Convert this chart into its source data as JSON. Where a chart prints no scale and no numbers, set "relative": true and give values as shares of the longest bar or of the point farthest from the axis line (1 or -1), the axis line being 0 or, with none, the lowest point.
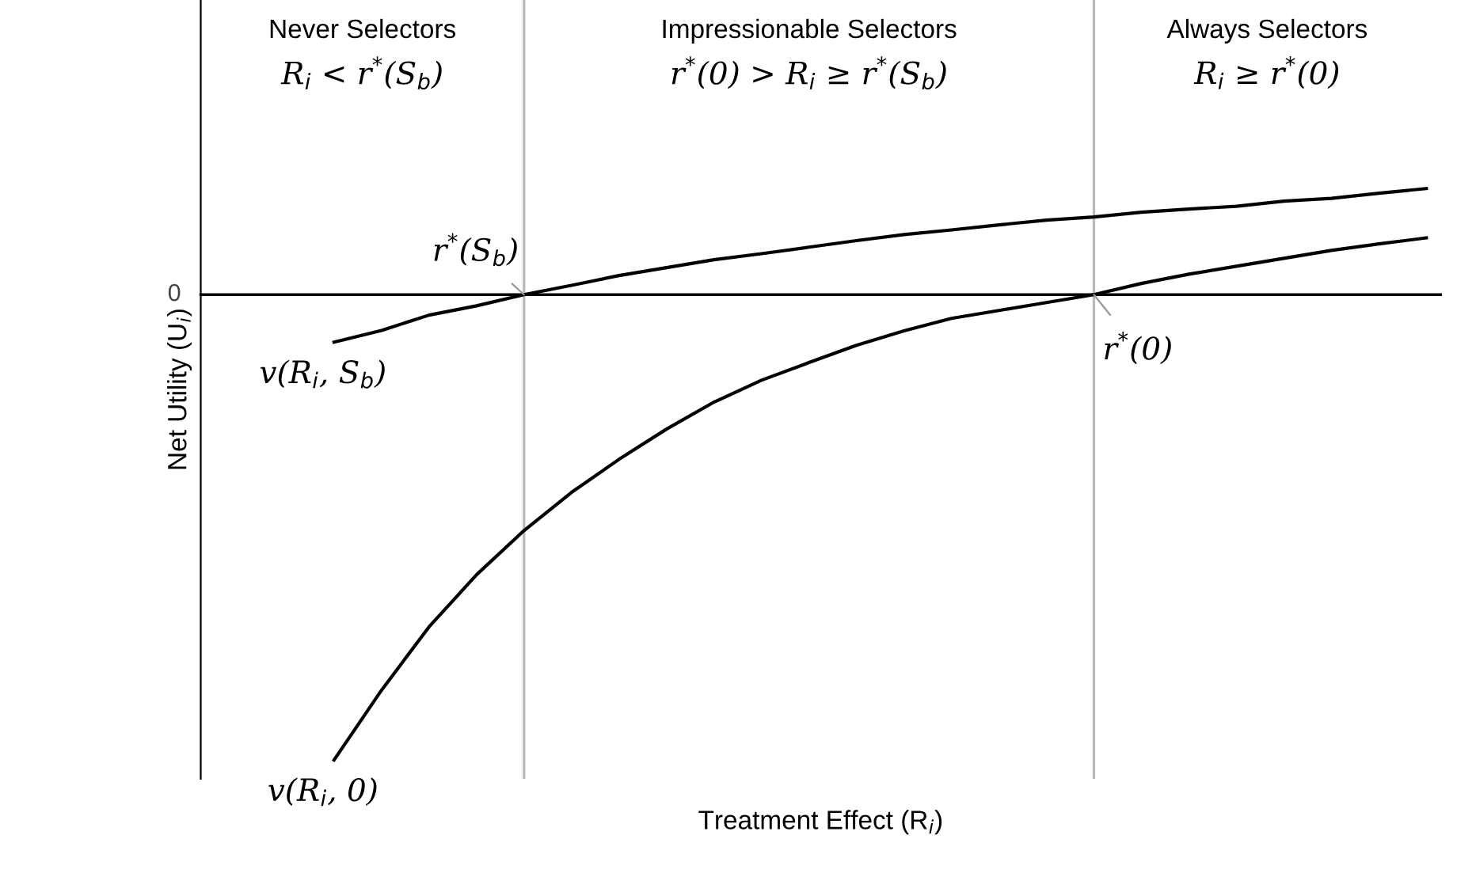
{
  "chart_data": {
    "type": "line",
    "relative": true,
    "xlabel": "Treatment Effect (R$_{i}$)",
    "ylabel": "Net Utility (U$_{i}$)",
    "categories": [
      null,
      null,
      null,
      null,
      null,
      null,
      null,
      null,
      null,
      null,
      null,
      null,
      null,
      null,
      null,
      null,
      null,
      null,
      null,
      null,
      null,
      null,
      null,
      null
    ],
    "grid": false,
    "legend": false,
    "marker": "none",
    "line_style": "solid",
    "series": [
      {
        "name": "v(R$_{i}$, S$_{b}$)",
        "color": "#000000",
        "values": [
          -0.102,
          -0.077,
          -0.044,
          -0.024,
          0,
          0.02,
          0.041,
          0.058,
          0.075,
          0.088,
          0.102,
          0.116,
          0.129,
          0.139,
          0.15,
          0.16,
          0.167,
          0.177,
          0.184,
          0.19,
          0.201,
          0.207,
          0.218,
          0.228
        ]
      },
      {
        "name": "v(R$_{i}$, 0)",
        "color": "#000000",
        "values": [
          -1,
          -0.85,
          -0.714,
          -0.602,
          -0.507,
          -0.425,
          -0.354,
          -0.289,
          -0.231,
          -0.184,
          -0.146,
          -0.109,
          -0.078,
          -0.051,
          -0.034,
          -0.017,
          0,
          0.024,
          0.044,
          0.061,
          0.078,
          0.095,
          0.109,
          0.122
        ]
      }
    ],
    "annotations": [
      "0",
      "Never Selectors\nR$_{i}$ < r$^{*}$(S$_{b}$)",
      "Impressionable Selectors\nr$^{*}$(0) > R$_{i}$ ≥ r$^{*}$(S$_{b}$)",
      "Always Selectors\nR$_{i}$ ≥ r$^{*}$(0)",
      "r$^{*}$(S$_{b}$)",
      "r$^{*}$(0)"
    ]
  }
}
